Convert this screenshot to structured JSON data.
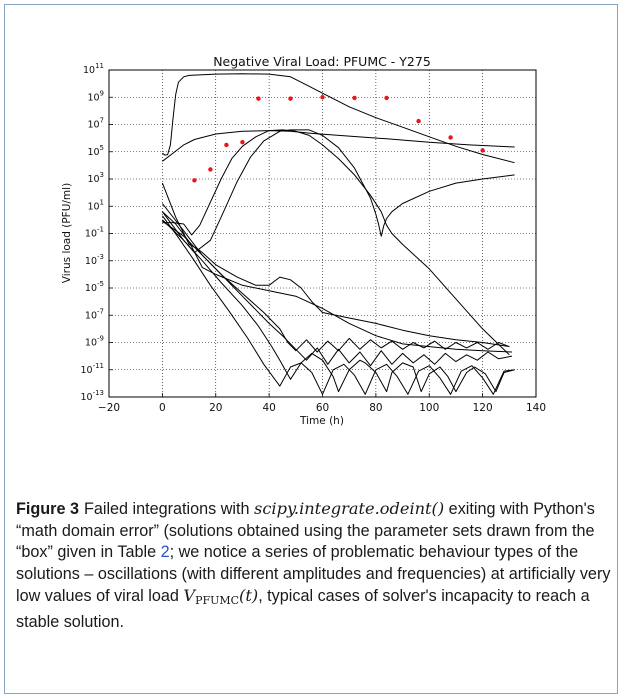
{
  "figure": {
    "chart_data": {
      "type": "line",
      "title": "Negative Viral Load: PFUMC - Y275",
      "xlabel": "Time (h)",
      "ylabel": "Virus load (PFU/ml)",
      "xlim": [
        -20,
        140
      ],
      "ylim_log10": [
        -13,
        11
      ],
      "y_scale": "log",
      "grid": true,
      "x_ticks": [
        "−20",
        "0",
        "20",
        "40",
        "60",
        "80",
        "100",
        "120",
        "140"
      ],
      "x_tick_values": [
        -20,
        0,
        20,
        40,
        60,
        80,
        100,
        120,
        140
      ],
      "y_tick_exponents": [
        11,
        9,
        7,
        5,
        3,
        1,
        -1,
        -3,
        -5,
        -7,
        -9,
        -11,
        -13
      ],
      "observed_points": {
        "color": "#e8141e",
        "x": [
          12,
          18,
          24,
          30,
          36,
          48,
          60,
          72,
          84,
          96,
          108,
          120
        ],
        "log10_y": [
          2.9,
          3.7,
          5.5,
          5.7,
          8.9,
          8.9,
          9.0,
          8.95,
          8.95,
          7.25,
          6.05,
          5.1
        ]
      },
      "series": [
        {
          "x": [
            0,
            1,
            2,
            3,
            4,
            5,
            6,
            8,
            10,
            15,
            20,
            30,
            40,
            48,
            55,
            60,
            70,
            80,
            90,
            100,
            110,
            120,
            132
          ],
          "log10_y": [
            4.9,
            4.75,
            4.8,
            5.5,
            7.5,
            9.2,
            10.1,
            10.5,
            10.6,
            10.65,
            10.7,
            10.72,
            10.7,
            10.5,
            9.8,
            9.3,
            8.3,
            7.5,
            6.8,
            6.1,
            5.4,
            4.8,
            4.2
          ]
        },
        {
          "x": [
            0,
            4,
            8,
            12,
            20,
            30,
            40,
            48,
            56,
            70,
            84,
            100,
            115,
            132
          ],
          "log10_y": [
            4.3,
            4.9,
            5.5,
            5.9,
            6.3,
            6.5,
            6.55,
            6.5,
            6.35,
            6.15,
            5.95,
            5.7,
            5.5,
            5.35
          ]
        },
        {
          "x": [
            0,
            4,
            8,
            11,
            14,
            18,
            22,
            26,
            30,
            35,
            40,
            45,
            50,
            55,
            60,
            66,
            72,
            78,
            82,
            84,
            86,
            90,
            100,
            110,
            120,
            130
          ],
          "log10_y": [
            -0.2,
            -0.2,
            -0.3,
            -1.1,
            -0.4,
            1.3,
            3.0,
            4.5,
            5.4,
            6.1,
            6.55,
            6.6,
            6.5,
            6.2,
            5.5,
            4.5,
            3.3,
            1.8,
            0.6,
            -0.4,
            -1.0,
            -1.8,
            -3.6,
            -5.8,
            -8.0,
            -9.9
          ]
        },
        {
          "x": [
            0,
            3,
            8,
            12,
            18,
            22,
            28,
            33,
            38,
            44,
            48,
            55,
            60,
            66,
            72,
            78,
            80,
            81,
            82,
            83,
            84,
            86,
            90,
            100,
            110,
            120,
            132
          ],
          "log10_y": [
            0.6,
            -0.2,
            -1.5,
            -2.4,
            -1.5,
            0.2,
            2.8,
            4.6,
            5.8,
            6.5,
            6.6,
            6.6,
            6.2,
            5.3,
            3.8,
            1.6,
            0.4,
            -0.3,
            -1.2,
            -0.4,
            0.1,
            0.6,
            1.2,
            2.1,
            2.7,
            3.0,
            3.3
          ]
        },
        {
          "x": [
            0,
            5,
            10,
            13,
            15,
            20,
            28,
            35,
            40,
            44,
            48,
            52,
            56,
            60,
            70,
            80,
            90,
            100,
            110,
            120,
            130
          ],
          "log10_y": [
            2.7,
            0.2,
            -1.8,
            -2.1,
            -2.4,
            -3.3,
            -4.2,
            -4.8,
            -4.8,
            -4.2,
            -4.4,
            -5.0,
            -6.0,
            -6.8,
            -7.2,
            -7.6,
            -8.1,
            -8.5,
            -8.8,
            -9.0,
            -9.3
          ]
        },
        {
          "x": [
            0,
            5,
            10,
            15,
            20,
            30,
            40,
            50,
            60,
            70,
            80,
            90,
            100,
            110,
            120,
            131
          ],
          "log10_y": [
            0.6,
            -0.3,
            -1.6,
            -3.5,
            -4.0,
            -4.8,
            -5.2,
            -5.6,
            -6.5,
            -7.6,
            -8.5,
            -9.1,
            -9.3,
            -9.5,
            -9.6,
            -9.7
          ]
        },
        {
          "x": [
            0,
            8,
            15,
            20,
            25,
            30,
            35,
            40,
            45,
            50,
            54,
            58,
            62,
            66,
            70,
            74,
            78,
            82,
            86,
            90,
            94,
            98,
            102,
            106,
            110,
            114,
            118,
            122,
            126,
            131
          ],
          "log10_y": [
            1.2,
            -0.8,
            -2.6,
            -3.6,
            -4.6,
            -5.6,
            -6.6,
            -7.6,
            -8.5,
            -9.5,
            -10.3,
            -9.4,
            -10.6,
            -9.5,
            -10.5,
            -9.7,
            -10.7,
            -9.6,
            -10.6,
            -9.8,
            -10.5,
            -9.9,
            -10.6,
            -9.8,
            -10.4,
            -9.9,
            -10.3,
            -9.7,
            -10.2,
            -10.0
          ]
        },
        {
          "x": [
            0,
            8,
            15,
            22,
            30,
            38,
            44,
            47,
            50,
            54,
            58,
            62,
            66,
            70,
            74,
            78,
            82,
            86,
            90,
            94,
            98,
            102,
            106,
            110,
            114,
            118,
            122,
            126,
            130
          ],
          "log10_y": [
            -0.1,
            -1.2,
            -2.6,
            -4.0,
            -5.4,
            -6.8,
            -8.0,
            -9.0,
            -9.6,
            -8.8,
            -9.7,
            -8.9,
            -9.6,
            -8.7,
            -9.5,
            -8.8,
            -9.4,
            -8.9,
            -9.5,
            -9.0,
            -9.4,
            -8.9,
            -9.5,
            -9.0,
            -9.4,
            -9.0,
            -9.5,
            -9.0,
            -9.3
          ]
        },
        {
          "x": [
            0,
            8,
            15,
            22,
            30,
            36,
            41,
            44,
            48,
            52,
            56,
            60,
            64,
            66,
            70,
            74,
            76,
            80,
            84,
            86,
            90,
            94,
            97,
            100,
            104,
            107,
            110,
            114,
            117,
            121,
            125,
            128,
            132
          ],
          "log10_y": [
            0.0,
            -1.5,
            -3.0,
            -4.6,
            -6.3,
            -7.8,
            -9.3,
            -10.3,
            -11.7,
            -10.5,
            -9.8,
            -10.3,
            -11.5,
            -12.6,
            -11.0,
            -10.3,
            -10.5,
            -11.2,
            -12.6,
            -11.2,
            -10.5,
            -10.8,
            -12.6,
            -11.3,
            -10.8,
            -11.5,
            -12.6,
            -11.2,
            -10.8,
            -11.3,
            -12.6,
            -11.2,
            -11.0
          ]
        },
        {
          "x": [
            0,
            6,
            12,
            18,
            25,
            32,
            38,
            44,
            48,
            52,
            56,
            60,
            64,
            68,
            72,
            76,
            80,
            84,
            88,
            92,
            96,
            100,
            104,
            108,
            112,
            116,
            120,
            124,
            128,
            132
          ],
          "log10_y": [
            0.3,
            -1.3,
            -3.0,
            -4.8,
            -6.7,
            -8.7,
            -10.6,
            -12.2,
            -10.8,
            -10.5,
            -11.2,
            -12.8,
            -11.0,
            -10.6,
            -11.4,
            -12.8,
            -11.0,
            -10.6,
            -11.5,
            -12.8,
            -11.1,
            -10.7,
            -11.6,
            -12.8,
            -11.1,
            -10.7,
            -11.6,
            -12.8,
            -11.1,
            -11.0
          ]
        }
      ]
    },
    "caption": {
      "label": "Figure 3",
      "text_1": "Failed integrations with ",
      "code": "scipy.integrate.odeint()",
      "text_2": " exiting with Python's “math domain error” (solutions obtained using the parameter sets drawn from the “box” given in Table ",
      "table_ref": "2",
      "text_3": "; we notice a series of problematic behaviour types of the solutions – oscillations (with different amplitudes and frequencies) at artificially very low values of viral load ",
      "math_var": "V",
      "math_sub": "PFUMC",
      "math_arg": "(t)",
      "text_4": ", typical cases of solver's incapacity to reach a stable solution."
    }
  }
}
